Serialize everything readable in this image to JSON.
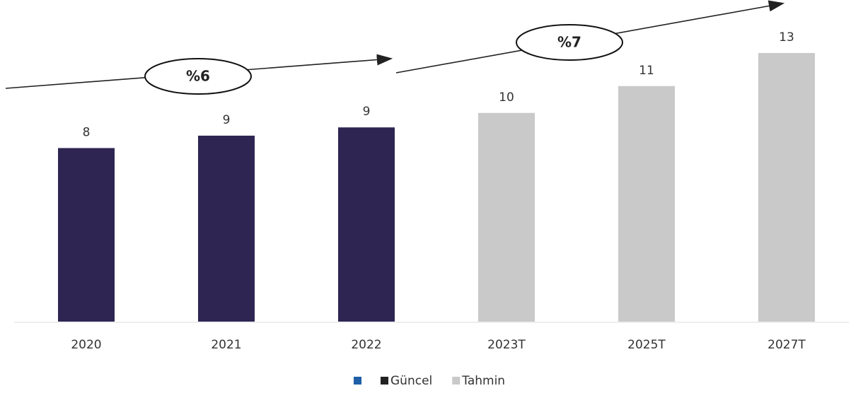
{
  "chart_data": {
    "type": "bar",
    "categories": [
      "2020",
      "2021",
      "2022",
      "2023T",
      "2025T",
      "2027T"
    ],
    "series": [
      {
        "name": "Güncel",
        "color": "#2e2552",
        "values": [
          8.4,
          9.0,
          9.4,
          null,
          null,
          null
        ],
        "value_labels": [
          "8",
          "9",
          "9",
          null,
          null,
          null
        ]
      },
      {
        "name": "Tahmin",
        "color": "#c9c9c9",
        "values": [
          null,
          null,
          null,
          10.1,
          11.4,
          13
        ],
        "value_labels": [
          null,
          null,
          null,
          "10",
          "11",
          "13"
        ]
      }
    ],
    "annotations": [
      "%6",
      "%7"
    ],
    "legend": "bottom"
  }
}
